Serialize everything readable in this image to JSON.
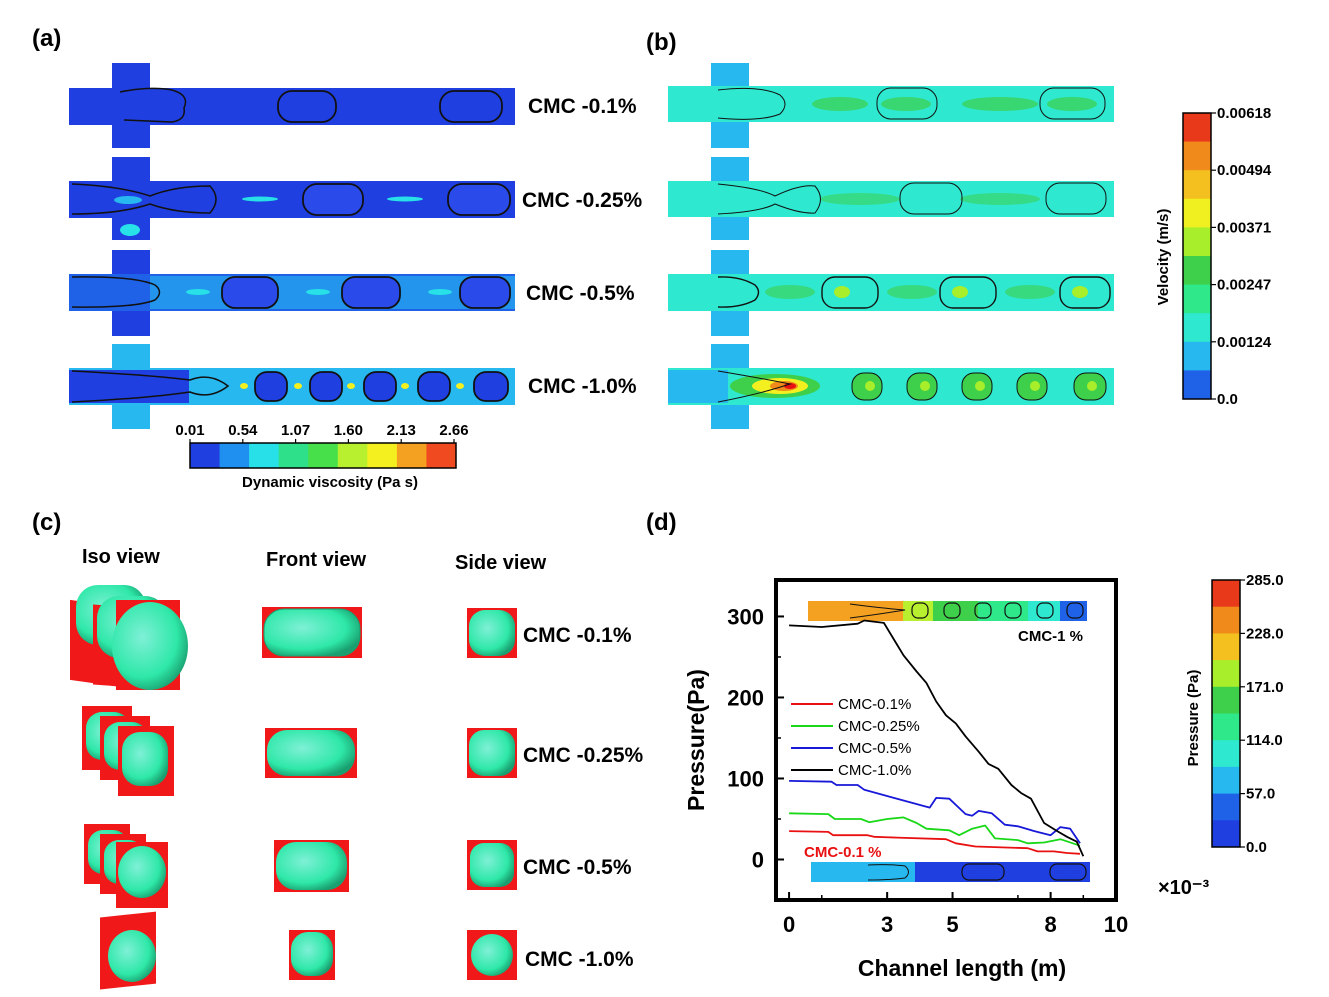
{
  "panels": {
    "a": {
      "tag": "(a)",
      "rows": [
        "CMC -0.1%",
        "CMC -0.25%",
        "CMC -0.5%",
        "CMC -1.0%"
      ],
      "colorbar": {
        "title": "Dynamic viscosity (Pa s)",
        "ticks": [
          "0.01",
          "0.54",
          "1.07",
          "1.60",
          "2.13",
          "2.66"
        ],
        "colors": [
          "#1f3fe0",
          "#1f8ff0",
          "#27e0e8",
          "#2fe08a",
          "#48e04a",
          "#b8f030",
          "#f4f020",
          "#f4a020",
          "#f04a20"
        ]
      }
    },
    "b": {
      "tag": "(b)",
      "colorbar": {
        "title": "Velocity (m/s)",
        "ticks": [
          "0.00618",
          "0.00494",
          "0.00371",
          "0.00247",
          "0.00124",
          "0.0"
        ],
        "colors": [
          "#e83a1a",
          "#f08a1a",
          "#f4c020",
          "#f0f020",
          "#a8ee2a",
          "#3ed04a",
          "#2ee88a",
          "#2ee8d0",
          "#27b8f0",
          "#1f62e8"
        ]
      }
    },
    "c": {
      "tag": "(c)",
      "headers": [
        "Iso view",
        "Front view",
        "Side view"
      ],
      "rows": [
        "CMC -0.1%",
        "CMC -0.25%",
        "CMC -0.5%",
        "CMC -1.0%"
      ]
    },
    "d": {
      "tag": "(d)",
      "inset_top_label": "CMC-1 %",
      "inset_bottom_label": "CMC-0.1 %",
      "colorbar": {
        "title": "Pressure (Pa)",
        "ticks": [
          "285.0",
          "228.0",
          "171.0",
          "114.0",
          "57.0",
          "0.0"
        ],
        "colors": [
          "#e83a1a",
          "#f08a1a",
          "#f4c020",
          "#a8ee2a",
          "#3ed04a",
          "#2ee88a",
          "#2ee8d0",
          "#27b8f0",
          "#1f62e8",
          "#1f3fe0"
        ]
      }
    }
  },
  "chart_data": {
    "type": "line",
    "xlabel": "Channel length (m)",
    "ylabel": "Pressure(Pa)",
    "x_multiplier": "×10⁻³",
    "xlim": [
      -0.4,
      10
    ],
    "ylim": [
      -50,
      345
    ],
    "xticks": [
      0,
      3,
      5,
      8,
      10
    ],
    "yticks": [
      0,
      100,
      200,
      300
    ],
    "legend_position": "left-center",
    "series": [
      {
        "name": "CMC-0.1%",
        "color": "#e81010",
        "x": [
          0,
          1.2,
          1.35,
          2.4,
          2.6,
          3.3,
          4.8,
          5.1,
          5.7,
          7.3,
          7.6,
          8.1,
          8.5,
          8.9
        ],
        "y": [
          35,
          34,
          30,
          30,
          28,
          27,
          25,
          20,
          16,
          14,
          10,
          10,
          8,
          7
        ]
      },
      {
        "name": "CMC-0.25%",
        "color": "#18d818",
        "x": [
          0,
          1.2,
          1.4,
          2.2,
          2.45,
          3.0,
          3.5,
          3.9,
          4.2,
          4.9,
          5.2,
          5.6,
          6.0,
          6.3,
          7.0,
          7.3,
          7.8,
          8.3,
          8.9
        ],
        "y": [
          57,
          56,
          50,
          50,
          46,
          50,
          52,
          45,
          38,
          36,
          30,
          38,
          42,
          26,
          24,
          20,
          21,
          25,
          17
        ]
      },
      {
        "name": "CMC-0.5%",
        "color": "#1818d8",
        "x": [
          0,
          1.3,
          1.45,
          2.1,
          2.3,
          4.3,
          4.5,
          4.9,
          5.4,
          5.6,
          5.8,
          6.2,
          6.6,
          7.0,
          7.5,
          8.0,
          8.3,
          8.6,
          8.9
        ],
        "y": [
          97,
          96,
          92,
          92,
          86,
          64,
          76,
          75,
          56,
          54,
          60,
          57,
          43,
          41,
          35,
          30,
          40,
          38,
          20
        ]
      },
      {
        "name": "CMC-1.0%",
        "color": "#000000",
        "x": [
          0,
          1.0,
          2.1,
          2.3,
          2.9,
          3.2,
          3.5,
          3.9,
          4.2,
          4.5,
          4.8,
          5.1,
          5.4,
          5.8,
          6.1,
          6.4,
          6.8,
          7.1,
          7.4,
          7.8,
          8.2,
          8.5,
          8.8,
          9.0
        ],
        "y": [
          289,
          287,
          291,
          295,
          292,
          272,
          252,
          232,
          218,
          195,
          178,
          168,
          152,
          133,
          118,
          112,
          92,
          82,
          75,
          45,
          35,
          28,
          22,
          4
        ]
      }
    ]
  }
}
